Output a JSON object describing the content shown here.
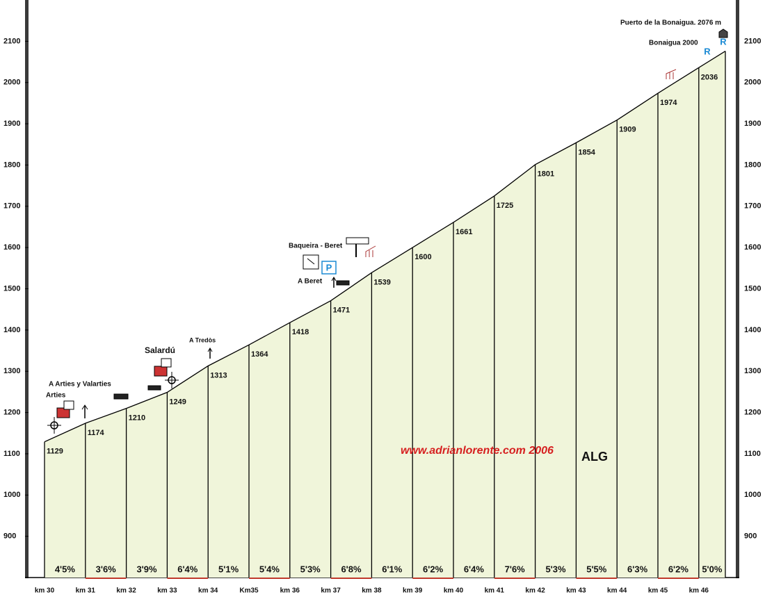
{
  "chart_data": {
    "type": "area",
    "categories": [
      "km 30",
      "km 31",
      "km 32",
      "km 33",
      "km 34",
      "Km35",
      "km 36",
      "km 37",
      "km 38",
      "km 39",
      "km 40",
      "km 41",
      "km 42",
      "km 43",
      "km 44",
      "km 45",
      "km 46",
      null
    ],
    "values": [
      1129,
      1174,
      1210,
      1249,
      1313,
      1364,
      1418,
      1471,
      1539,
      1600,
      1661,
      1725,
      1801,
      1854,
      1909,
      1974,
      2036,
      2076
    ],
    "color": "#f0f5da",
    "ylim": [
      800,
      2200
    ],
    "yticks": [
      900,
      1000,
      1100,
      1200,
      1300,
      1400,
      1500,
      1600,
      1700,
      1800,
      1900,
      2000,
      2100
    ],
    "gradients": {
      "values": [
        4.5,
        3.6,
        3.9,
        6.4,
        5.1,
        5.4,
        5.3,
        6.8,
        6.1,
        6.2,
        6.4,
        7.6,
        5.3,
        5.5,
        6.3,
        6.2,
        5.0
      ],
      "value_labels": [
        "4'5%",
        "3'6%",
        "3'9%",
        "6'4%",
        "5'1%",
        "5'4%",
        "5'3%",
        "6'8%",
        "6'1%",
        "6'2%",
        "6'4%",
        "7'6%",
        "5'3%",
        "5'5%",
        "6'3%",
        "6'2%",
        "5'0%"
      ]
    },
    "annotations": [
      "Puerto de la Bonaigua. 2076 m",
      "Bonaigua 2000",
      "Baqueira - Beret",
      "A Beret",
      "A Tredòs",
      "Salardú",
      "A Arties  y Valarties",
      "Arties",
      "www.adrianlorente.com 2006",
      "ALG",
      "P",
      "R",
      "R"
    ]
  }
}
